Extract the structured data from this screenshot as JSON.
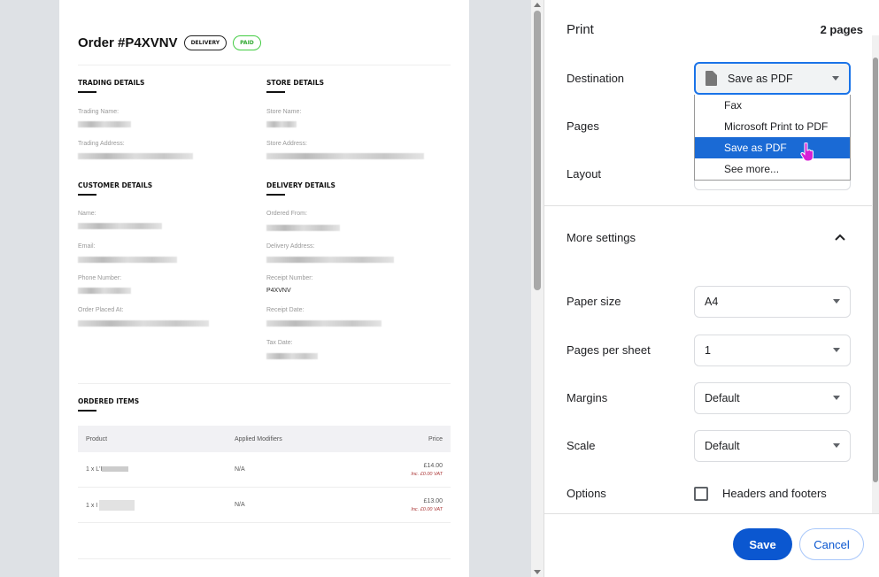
{
  "order": {
    "title": "Order #P4XVNV",
    "badges": {
      "delivery": "DELIVERY",
      "paid": "PAID"
    },
    "sections": {
      "trading": "TRADING DETAILS",
      "store": "STORE DETAILS",
      "customer": "CUSTOMER DETAILS",
      "delivery": "DELIVERY DETAILS",
      "items": "ORDERED ITEMS"
    },
    "labels": {
      "trading_name": "Trading Name:",
      "trading_address": "Trading Address:",
      "store_name": "Store Name:",
      "store_address": "Store Address:",
      "name": "Name:",
      "email": "Email:",
      "phone": "Phone Number:",
      "placed": "Order Placed At:",
      "ordered_from": "Ordered From:",
      "delivery_address": "Delivery Address:",
      "receipt_number": "Receipt Number:",
      "receipt_date": "Receipt Date:",
      "tax_date": "Tax Date:"
    },
    "receipt_number": "P4XVNV",
    "table": {
      "headers": [
        "Product",
        "Applied Modifiers",
        "Price"
      ],
      "rows": [
        {
          "product": "1 x L'I",
          "modifiers": "N/A",
          "price": "£14.00",
          "vat": "Inc. £0.00 VAT"
        },
        {
          "product": "1 x I",
          "modifiers": "N/A",
          "price": "£13.00",
          "vat": "Inc. £0.00 VAT"
        }
      ]
    }
  },
  "print": {
    "title": "Print",
    "pages_count": "2 pages",
    "destination": {
      "label": "Destination",
      "value": "Save as PDF",
      "icon": "file-icon",
      "options": [
        "Fax",
        "Microsoft Print to PDF",
        "Save as PDF",
        "See more..."
      ]
    },
    "pages_label": "Pages",
    "layout_label": "Layout",
    "more_settings": "More settings",
    "paper_size": {
      "label": "Paper size",
      "value": "A4"
    },
    "pages_per_sheet": {
      "label": "Pages per sheet",
      "value": "1"
    },
    "margins": {
      "label": "Margins",
      "value": "Default"
    },
    "scale": {
      "label": "Scale",
      "value": "Default"
    },
    "options": {
      "label": "Options",
      "checkbox": "Headers and footers",
      "checked": false
    },
    "save": "Save",
    "cancel": "Cancel",
    "accent": "#1a73e8"
  }
}
